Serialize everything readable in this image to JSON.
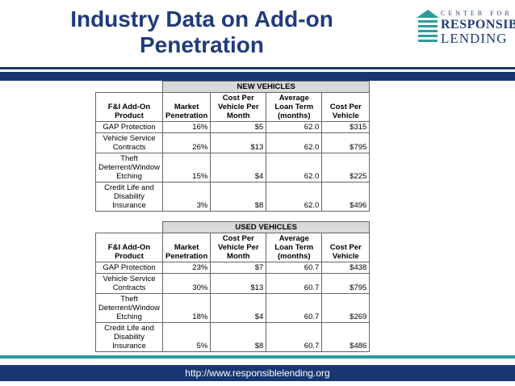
{
  "slide": {
    "title_line1": "Industry Data on Add-on",
    "title_line2": "Penetration",
    "logo": {
      "line1": "CENTER FOR",
      "line2": "RESPONSIBLE",
      "line3": "LENDING"
    },
    "footer_url": "http://www.responsiblelending.org"
  },
  "colors": {
    "navy": "#1a3672",
    "teal": "#2e9c9c",
    "title": "#1f3b7a",
    "section_header": "#d9d9d9"
  },
  "columns": [
    "F&I Add-On Product",
    "Market Penetration",
    "Cost Per Vehicle Per Month",
    "Average Loan Term (months)",
    "Cost Per Vehicle"
  ],
  "new_vehicles": {
    "section": "NEW VEHICLES",
    "rows": [
      {
        "product": "GAP Protection",
        "penetration": "16%",
        "cost_month": "$5",
        "term": "62.0",
        "cost_vehicle": "$315"
      },
      {
        "product": "Vehicle Service Contracts",
        "penetration": "26%",
        "cost_month": "$13",
        "term": "62.0",
        "cost_vehicle": "$795"
      },
      {
        "product": "Theft Deterrent/Window Etching",
        "penetration": "15%",
        "cost_month": "$4",
        "term": "62.0",
        "cost_vehicle": "$225"
      },
      {
        "product": "Credit Life and Disability Insurance",
        "penetration": "3%",
        "cost_month": "$8",
        "term": "62.0",
        "cost_vehicle": "$496"
      }
    ]
  },
  "used_vehicles": {
    "section": "USED VEHICLES",
    "rows": [
      {
        "product": "GAP Protection",
        "penetration": "23%",
        "cost_month": "$7",
        "term": "60.7",
        "cost_vehicle": "$438"
      },
      {
        "product": "Vehicle Service Contracts",
        "penetration": "30%",
        "cost_month": "$13",
        "term": "60.7",
        "cost_vehicle": "$795"
      },
      {
        "product": "Theft Deterrent/Window Etching",
        "penetration": "18%",
        "cost_month": "$4",
        "term": "60.7",
        "cost_vehicle": "$269"
      },
      {
        "product": "Credit Life and Disability Insurance",
        "penetration": "5%",
        "cost_month": "$8",
        "term": "60.7",
        "cost_vehicle": "$486"
      }
    ]
  }
}
